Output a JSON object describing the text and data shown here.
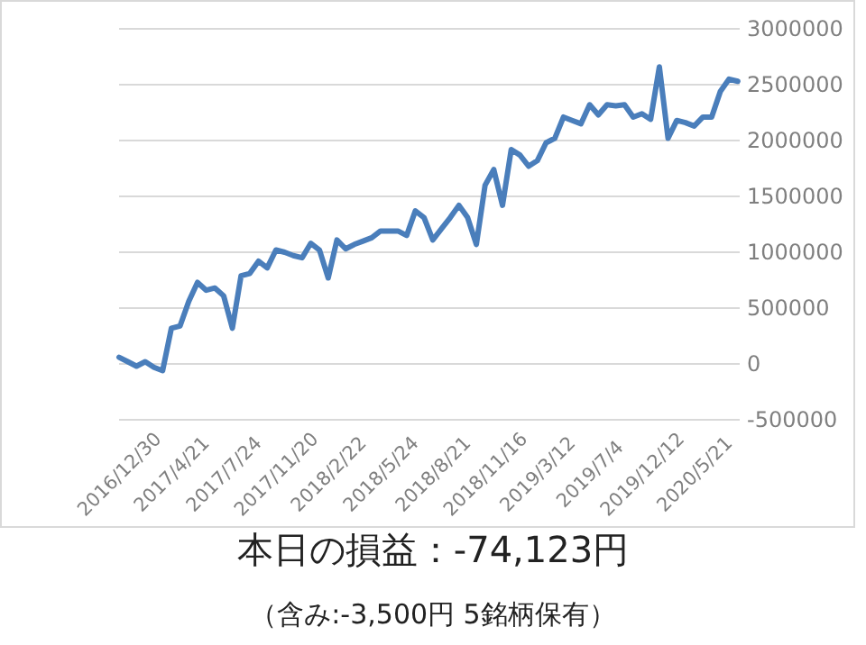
{
  "chart_data": {
    "type": "line",
    "categories": [
      "2016/12/30",
      null,
      null,
      null,
      null,
      null,
      "2017/4/21",
      null,
      null,
      null,
      null,
      null,
      "2017/7/24",
      null,
      null,
      null,
      null,
      null,
      "2017/11/20",
      null,
      null,
      null,
      null,
      null,
      "2018/2/22",
      null,
      null,
      null,
      null,
      null,
      "2018/5/24",
      null,
      null,
      null,
      null,
      null,
      "2018/8/21",
      null,
      null,
      null,
      null,
      null,
      "2018/11/16",
      null,
      null,
      null,
      null,
      null,
      "2019/3/12",
      null,
      null,
      null,
      null,
      null,
      "2019/7/4",
      null,
      null,
      null,
      null,
      null,
      "2019/12/12",
      null,
      null,
      null,
      null,
      null,
      "2020/5/21",
      null,
      null,
      null,
      null,
      null
    ],
    "series": [
      {
        "color": "#4a7ebb",
        "values": [
          60000,
          20000,
          -20000,
          20000,
          -30000,
          -60000,
          320000,
          340000,
          560000,
          730000,
          660000,
          680000,
          610000,
          320000,
          790000,
          810000,
          920000,
          860000,
          1020000,
          1000000,
          970000,
          950000,
          1080000,
          1020000,
          770000,
          1110000,
          1030000,
          1070000,
          1100000,
          1130000,
          1190000,
          1190000,
          1190000,
          1150000,
          1370000,
          1310000,
          1110000,
          1210000,
          1310000,
          1420000,
          1310000,
          1070000,
          1600000,
          1740000,
          1420000,
          1920000,
          1870000,
          1770000,
          1820000,
          1980000,
          2020000,
          2210000,
          2180000,
          2150000,
          2320000,
          2230000,
          2320000,
          2310000,
          2320000,
          2210000,
          2240000,
          2190000,
          2660000,
          2020000,
          2180000,
          2160000,
          2130000,
          2210000,
          2210000,
          2440000,
          2550000,
          2530000
        ]
      }
    ],
    "ylim": [
      -500000,
      3000000
    ],
    "yticks": [
      -500000,
      0,
      500000,
      1000000,
      1500000,
      2000000,
      2500000,
      3000000
    ],
    "grid": "y",
    "marker": "none",
    "line_style": "solid",
    "annotations": [
      "本日の損益：-74,123円",
      "（含み:-3,500円  5銘柄保有）"
    ]
  }
}
